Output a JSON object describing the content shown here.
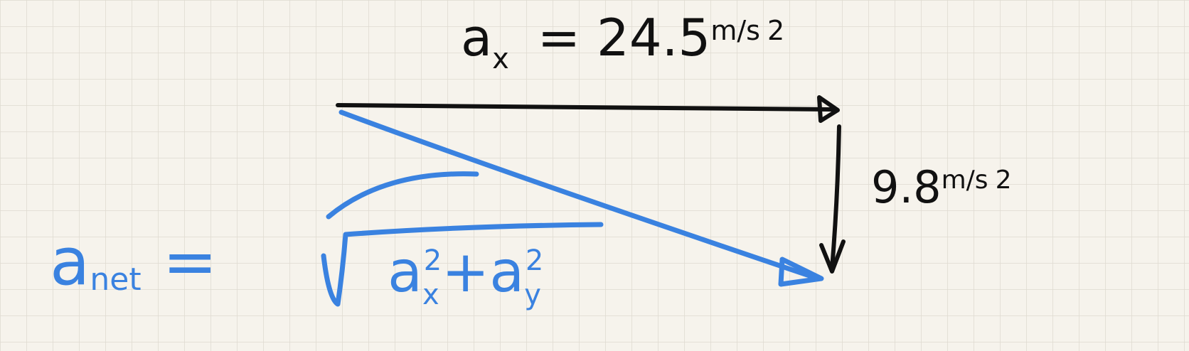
{
  "top_label": {
    "symbol": "a",
    "subscript": "x",
    "equals_value": "= 24.5",
    "unit": "m/s",
    "exponent": "2"
  },
  "side_label": {
    "value": "9.8",
    "unit": "m/s",
    "exponent": "2"
  },
  "formula": {
    "symbol": "a",
    "subscript": "net",
    "equals": "=",
    "term1": "a",
    "sub1": "x",
    "exp1": "2",
    "plus": "+",
    "term2": "a",
    "sub2": "y",
    "exp2": "2"
  }
}
